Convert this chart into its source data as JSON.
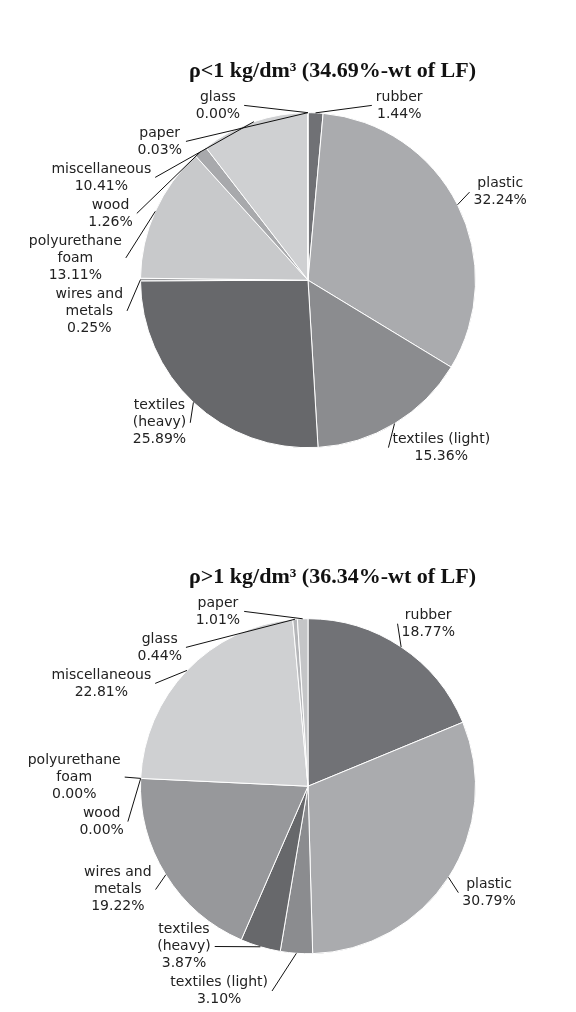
{
  "chart_data": [
    {
      "type": "pie",
      "title": "ρ<1 kg/dm³ (34.69%-wt of LF)",
      "categories": [
        "rubber",
        "plastic",
        "textiles (light)",
        "textiles (heavy)",
        "wires and metals",
        "polyurethane foam",
        "wood",
        "miscellaneous",
        "paper",
        "glass"
      ],
      "values": [
        1.44,
        32.24,
        15.36,
        25.89,
        0.25,
        13.11,
        1.26,
        10.41,
        0.03,
        0.0
      ],
      "value_labels": [
        "1.44%",
        "32.24%",
        "15.36%",
        "25.89%",
        "0.25%",
        "13.11%",
        "1.26%",
        "10.41%",
        "0.03%",
        "0.00%"
      ],
      "colors": [
        "#707175",
        "#aaabae",
        "#8b8c8f",
        "#67686b",
        "#9a9b9e",
        "#c8c9cb",
        "#a8a9ac",
        "#cfd0d2",
        "#bbbcbe",
        "#cccdcf"
      ]
    },
    {
      "type": "pie",
      "title": "ρ>1 kg/dm³ (36.34%-wt of LF)",
      "categories": [
        "rubber",
        "plastic",
        "textiles (light)",
        "textiles (heavy)",
        "wires and metals",
        "polyurethane foam",
        "wood",
        "miscellaneous",
        "glass",
        "paper"
      ],
      "values": [
        18.77,
        30.79,
        3.1,
        3.87,
        19.22,
        0.0,
        0.0,
        22.81,
        0.44,
        1.01
      ],
      "value_labels": [
        "18.77%",
        "30.79%",
        "3.10%",
        "3.87%",
        "19.22%",
        "0.00%",
        "0.00%",
        "22.81%",
        "0.44%",
        "1.01%"
      ],
      "colors": [
        "#717276",
        "#aaabae",
        "#8b8c8f",
        "#67686b",
        "#97989b",
        "#c8c9cb",
        "#a8a9ac",
        "#cfd0d2",
        "#b5b6b9",
        "#c4c5c7"
      ]
    }
  ]
}
